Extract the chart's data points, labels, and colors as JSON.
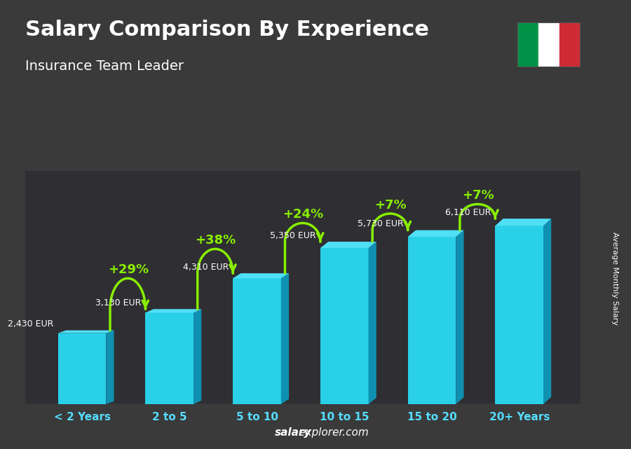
{
  "title": "Salary Comparison By Experience",
  "subtitle": "Insurance Team Leader",
  "categories": [
    "< 2 Years",
    "2 to 5",
    "5 to 10",
    "10 to 15",
    "15 to 20",
    "20+ Years"
  ],
  "values": [
    2430,
    3130,
    4310,
    5350,
    5730,
    6110
  ],
  "pct_changes": [
    "+29%",
    "+38%",
    "+24%",
    "+7%",
    "+7%"
  ],
  "bar_face_color": "#29d0e8",
  "bar_side_color": "#1090b0",
  "bar_top_color": "#50e0f5",
  "bg_color": "#3a3a3a",
  "text_color": "#ffffff",
  "accent_color": "#88ee00",
  "ylabel": "Average Monthly Salary",
  "footer_bold": "salary",
  "footer_normal": "explorer.com",
  "ylim": [
    0,
    8000
  ],
  "flag_green": "#009246",
  "flag_white": "#ffffff",
  "flag_red": "#ce2b37",
  "val_label_color": "#ffffff",
  "xtick_color": "#55ddff"
}
